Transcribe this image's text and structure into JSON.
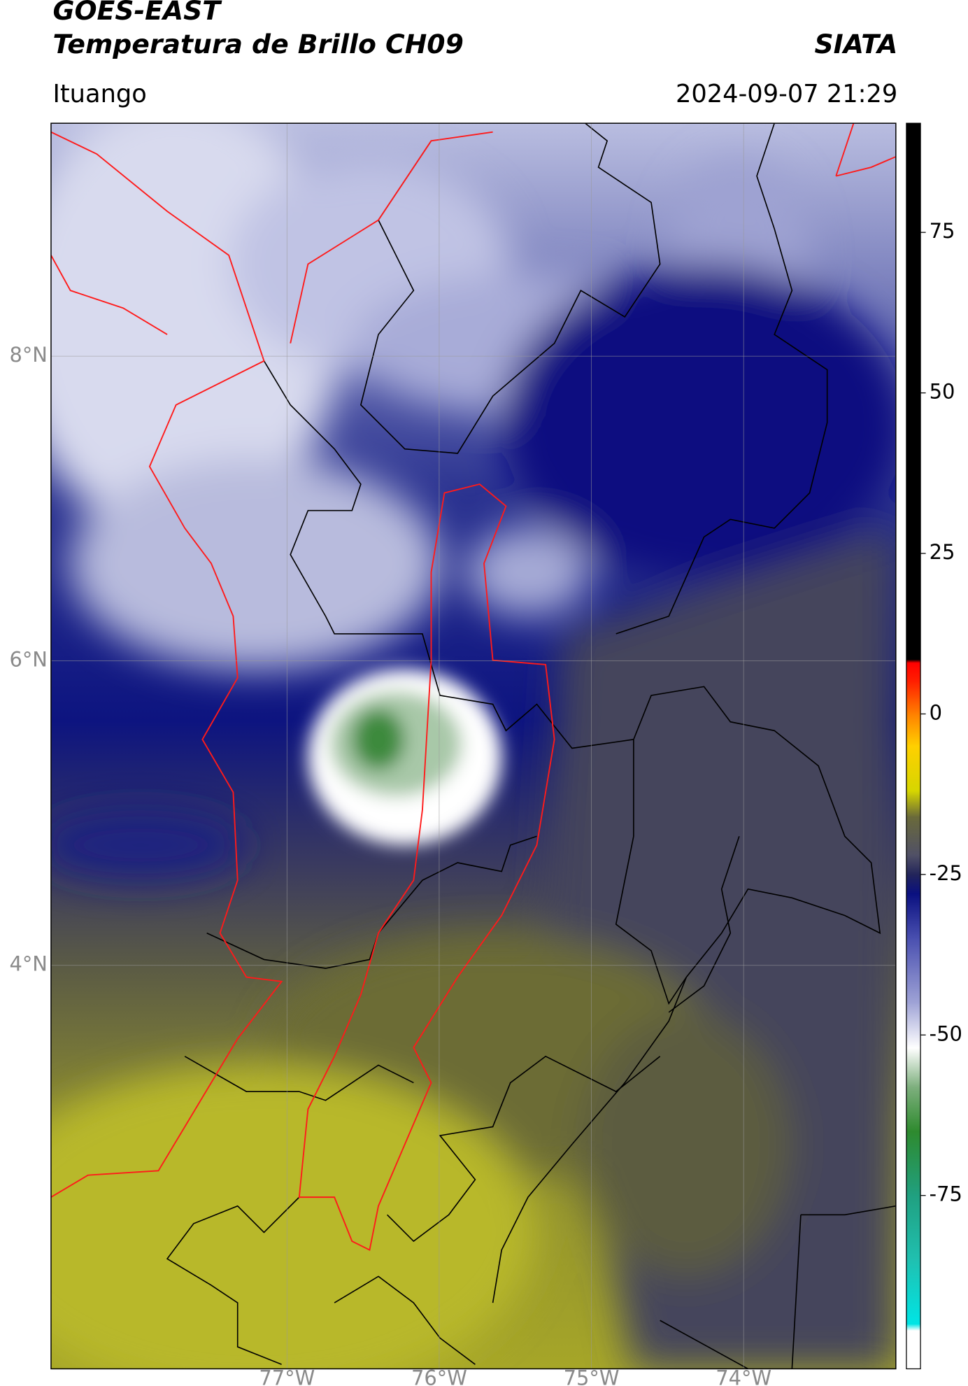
{
  "header": {
    "satellite": "GOES-EAST",
    "product": "Temperatura de Brillo CH09",
    "agency": "SIATA",
    "region": "Ituango",
    "datetime": "2024-09-07 21:29"
  },
  "map": {
    "lonlim": [
      -78.55,
      -73.0
    ],
    "latlim": [
      1.35,
      9.53
    ],
    "grid": true,
    "lonticks": [
      {
        "value": -77,
        "label": "77°W"
      },
      {
        "value": -76,
        "label": "76°W"
      },
      {
        "value": -75,
        "label": "75°W"
      },
      {
        "value": -74,
        "label": "74°W"
      }
    ],
    "latticks": [
      {
        "value": 8,
        "label": "8°N"
      },
      {
        "value": 6,
        "label": "6°N"
      },
      {
        "value": 4,
        "label": "4°N"
      }
    ]
  },
  "colorbar": {
    "lim": [
      -102,
      92
    ],
    "ticks": [
      -75,
      -50,
      -25,
      0,
      25,
      50,
      75
    ],
    "colormap": [
      {
        "value": -102,
        "color": "#ffffff"
      },
      {
        "value": -96,
        "color": "#ffffff"
      },
      {
        "value": -95,
        "color": "#00e5e5"
      },
      {
        "value": -85,
        "color": "#20c0b0"
      },
      {
        "value": -75,
        "color": "#20a080"
      },
      {
        "value": -65,
        "color": "#2e8a2e"
      },
      {
        "value": -58,
        "color": "#7fb07f"
      },
      {
        "value": -52,
        "color": "#ffffff"
      },
      {
        "value": -45,
        "color": "#9fa3d6"
      },
      {
        "value": -35,
        "color": "#4a50b0"
      },
      {
        "value": -28,
        "color": "#0a1080"
      },
      {
        "value": -25,
        "color": "#22245a"
      },
      {
        "value": -22,
        "color": "#505066"
      },
      {
        "value": -16,
        "color": "#6a6a3a"
      },
      {
        "value": -12,
        "color": "#d6d600"
      },
      {
        "value": -5,
        "color": "#ffd000"
      },
      {
        "value": 0,
        "color": "#ff8000"
      },
      {
        "value": 5,
        "color": "#ff2000"
      },
      {
        "value": 8,
        "color": "#ff0000"
      },
      {
        "value": 8.5,
        "color": "#000000"
      },
      {
        "value": 92,
        "color": "#000000"
      }
    ]
  }
}
